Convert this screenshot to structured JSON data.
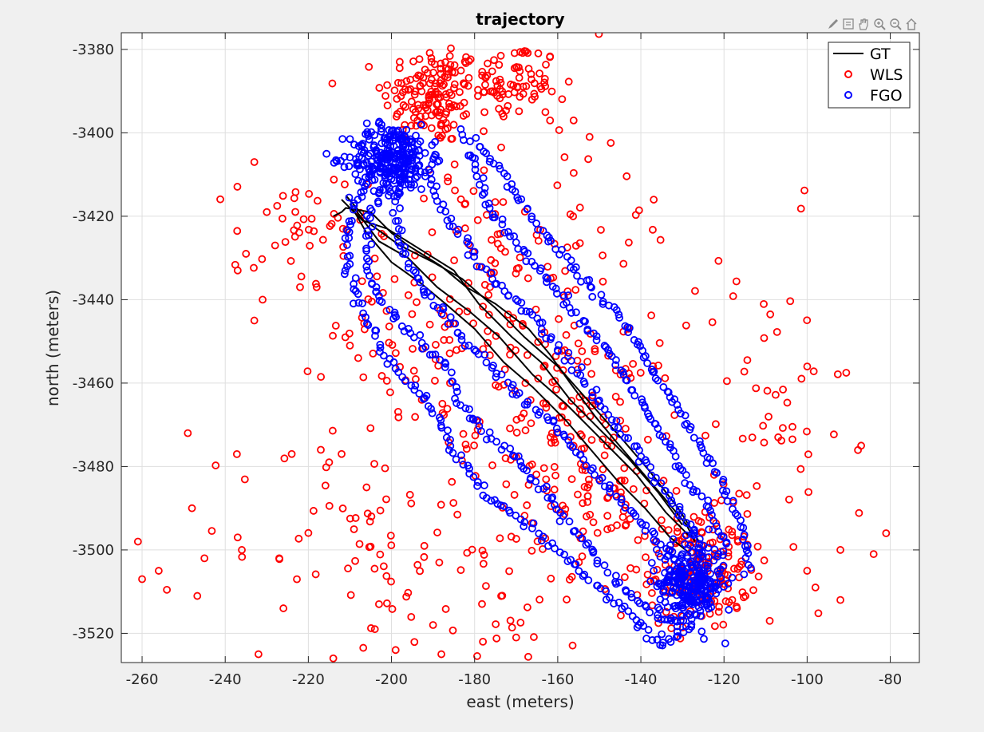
{
  "chart_data": {
    "type": "scatter",
    "title": "trajectory",
    "xlabel": "east (meters)",
    "ylabel": "north (meters)",
    "xlim": [
      -265,
      -73
    ],
    "ylim": [
      -3527,
      -3376
    ],
    "xticks": [
      -260,
      -240,
      -220,
      -200,
      -180,
      -160,
      -140,
      -120,
      -100,
      -80
    ],
    "yticks": [
      -3380,
      -3400,
      -3420,
      -3440,
      -3460,
      -3480,
      -3500,
      -3520
    ],
    "grid": true,
    "legend_position": "top-right",
    "colors": {
      "GT": "#000000",
      "WLS": "#ff0000",
      "FGO": "#0000ff"
    },
    "toolbar_icons": [
      "brush-icon",
      "data-tip-icon",
      "pan-icon",
      "zoom-in-icon",
      "zoom-out-icon",
      "home-icon"
    ],
    "series": [
      {
        "name": "GT",
        "style": "line",
        "paths": [
          [
            [
              -214,
              -3420
            ],
            [
              -212,
              -3419
            ],
            [
              -211,
              -3418
            ],
            [
              -205,
              -3419
            ],
            [
              -200,
              -3424
            ],
            [
              -196,
              -3427
            ],
            [
              -188,
              -3432
            ],
            [
              -182,
              -3437
            ],
            [
              -175,
              -3441
            ],
            [
              -167,
              -3447
            ],
            [
              -162,
              -3453
            ],
            [
              -157,
              -3460
            ],
            [
              -151,
              -3468
            ],
            [
              -146,
              -3474
            ],
            [
              -140,
              -3481
            ],
            [
              -134,
              -3488
            ],
            [
              -129,
              -3494
            ],
            [
              -127,
              -3498
            ]
          ],
          [
            [
              -211,
              -3415
            ],
            [
              -205,
              -3422
            ],
            [
              -198,
              -3427
            ],
            [
              -190,
              -3431
            ],
            [
              -183,
              -3435
            ],
            [
              -175,
              -3442
            ],
            [
              -168,
              -3449
            ],
            [
              -160,
              -3456
            ],
            [
              -152,
              -3465
            ],
            [
              -144,
              -3474
            ],
            [
              -138,
              -3481
            ],
            [
              -131,
              -3490
            ],
            [
              -126,
              -3498
            ]
          ],
          [
            [
              -210,
              -3417
            ],
            [
              -206,
              -3424
            ],
            [
              -200,
              -3431
            ],
            [
              -193,
              -3436
            ],
            [
              -187,
              -3441
            ],
            [
              -180,
              -3447
            ],
            [
              -173,
              -3455
            ],
            [
              -166,
              -3461
            ],
            [
              -158,
              -3469
            ],
            [
              -152,
              -3476
            ],
            [
              -146,
              -3483
            ],
            [
              -139,
              -3490
            ],
            [
              -133,
              -3497
            ],
            [
              -128,
              -3501
            ]
          ],
          [
            [
              -212,
              -3416
            ],
            [
              -207,
              -3421
            ],
            [
              -201,
              -3423
            ],
            [
              -193,
              -3428
            ],
            [
              -185,
              -3433
            ],
            [
              -179,
              -3441
            ],
            [
              -171,
              -3449
            ],
            [
              -164,
              -3455
            ],
            [
              -157,
              -3464
            ],
            [
              -150,
              -3471
            ],
            [
              -143,
              -3478
            ],
            [
              -136,
              -3486
            ],
            [
              -130,
              -3494
            ]
          ],
          [
            [
              -209,
              -3418
            ],
            [
              -203,
              -3426
            ],
            [
              -196,
              -3430
            ],
            [
              -189,
              -3437
            ],
            [
              -181,
              -3443
            ],
            [
              -174,
              -3449
            ],
            [
              -166,
              -3458
            ],
            [
              -158,
              -3465
            ],
            [
              -149,
              -3474
            ],
            [
              -141,
              -3482
            ],
            [
              -134,
              -3491
            ],
            [
              -128,
              -3497
            ]
          ]
        ]
      },
      {
        "name": "WLS",
        "style": "markers",
        "clusters": [
          {
            "center": [
              -190,
              -3391
            ],
            "sd": [
              6,
              6
            ],
            "n": 150
          },
          {
            "center": [
              -170,
              -3388
            ],
            "sd": [
              5,
              5
            ],
            "n": 70
          },
          {
            "center": [
              -126,
              -3505
            ],
            "sd": [
              6,
              7
            ],
            "n": 160
          },
          {
            "center": [
              -148,
              -3490
            ],
            "sd": [
              6,
              5
            ],
            "n": 35
          },
          {
            "center": [
              -155,
              -3470
            ],
            "sd": [
              12,
              12
            ],
            "n": 120
          },
          {
            "center": [
              -185,
              -3445
            ],
            "sd": [
              14,
              14
            ],
            "n": 120
          },
          {
            "center": [
              -222,
              -3425
            ],
            "sd": [
              8,
              8
            ],
            "n": 40
          },
          {
            "center": [
              -165,
              -3420
            ],
            "sd": [
              20,
              20
            ],
            "n": 80
          },
          {
            "center": [
              -110,
              -3475
            ],
            "sd": [
              10,
              25
            ],
            "n": 60
          },
          {
            "center": [
              -205,
              -3495
            ],
            "sd": [
              20,
              15
            ],
            "n": 60
          },
          {
            "center": [
              -170,
              -3500
            ],
            "sd": [
              20,
              15
            ],
            "n": 60
          }
        ],
        "points": [
          [
            -261,
            -3498
          ],
          [
            -260,
            -3507
          ],
          [
            -256,
            -3505
          ],
          [
            -249,
            -3472
          ],
          [
            -248,
            -3490
          ],
          [
            -245,
            -3502
          ],
          [
            -237,
            -3433
          ],
          [
            -237,
            -3497
          ],
          [
            -236,
            -3500
          ],
          [
            -233,
            -3407
          ],
          [
            -233,
            -3445
          ],
          [
            -232,
            -3525
          ],
          [
            -231,
            -3440
          ],
          [
            -230,
            -3419
          ],
          [
            -226,
            -3514
          ],
          [
            -224,
            -3477
          ],
          [
            -222,
            -3437
          ],
          [
            -218,
            -3437
          ],
          [
            -217,
            -3476
          ],
          [
            -215,
            -3479
          ],
          [
            -212,
            -3477
          ],
          [
            -210,
            -3451
          ],
          [
            -208,
            -3454
          ],
          [
            -206,
            -3485
          ],
          [
            -204,
            -3519
          ],
          [
            -203,
            -3513
          ],
          [
            -199,
            -3524
          ],
          [
            -190,
            -3518
          ],
          [
            -188,
            -3525
          ],
          [
            -178,
            -3522
          ],
          [
            -170,
            -3521
          ],
          [
            -84,
            -3501
          ],
          [
            -81,
            -3496
          ],
          [
            -87,
            -3475
          ],
          [
            -92,
            -3500
          ],
          [
            -92,
            -3512
          ],
          [
            -214,
            -3526
          ],
          [
            -227,
            -3502
          ],
          [
            -235,
            -3429
          ],
          [
            -228,
            -3427
          ],
          [
            -98,
            -3509
          ],
          [
            -100,
            -3505
          ],
          [
            -109,
            -3517
          ]
        ]
      },
      {
        "name": "FGO",
        "style": "markers",
        "cluster_top": {
          "center": [
            -200,
            -3406
          ],
          "sd": [
            5,
            4
          ],
          "n": 260
        },
        "cluster_bottom": {
          "center": [
            -128,
            -3508
          ],
          "sd": [
            4,
            5
          ],
          "n": 260
        },
        "paths": [
          [
            [
              -205,
              -3410
            ],
            [
              -210,
              -3420
            ],
            [
              -211,
              -3432
            ],
            [
              -206,
              -3444
            ],
            [
              -202,
              -3452
            ],
            [
              -196,
              -3460
            ],
            [
              -190,
              -3466
            ],
            [
              -186,
              -3475
            ],
            [
              -181,
              -3482
            ],
            [
              -176,
              -3488
            ],
            [
              -170,
              -3492
            ],
            [
              -164,
              -3497
            ],
            [
              -158,
              -3502
            ],
            [
              -152,
              -3507
            ],
            [
              -146,
              -3512
            ],
            [
              -140,
              -3518
            ],
            [
              -135,
              -3523
            ],
            [
              -130,
              -3520
            ]
          ],
          [
            [
              -200,
              -3408
            ],
            [
              -205,
              -3420
            ],
            [
              -206,
              -3433
            ],
            [
              -200,
              -3444
            ],
            [
              -193,
              -3450
            ],
            [
              -187,
              -3456
            ],
            [
              -183,
              -3466
            ],
            [
              -177,
              -3472
            ],
            [
              -170,
              -3478
            ],
            [
              -163,
              -3486
            ],
            [
              -158,
              -3493
            ],
            [
              -153,
              -3499
            ],
            [
              -148,
              -3505
            ],
            [
              -142,
              -3511
            ],
            [
              -136,
              -3516
            ],
            [
              -130,
              -3518
            ]
          ],
          [
            [
              -196,
              -3404
            ],
            [
              -199,
              -3415
            ],
            [
              -198,
              -3427
            ],
            [
              -193,
              -3437
            ],
            [
              -187,
              -3444
            ],
            [
              -181,
              -3451
            ],
            [
              -175,
              -3457
            ],
            [
              -168,
              -3464
            ],
            [
              -161,
              -3470
            ],
            [
              -155,
              -3477
            ],
            [
              -148,
              -3485
            ],
            [
              -141,
              -3492
            ],
            [
              -135,
              -3499
            ],
            [
              -130,
              -3506
            ]
          ],
          [
            [
              -190,
              -3402
            ],
            [
              -190,
              -3412
            ],
            [
              -186,
              -3421
            ],
            [
              -181,
              -3428
            ],
            [
              -176,
              -3435
            ],
            [
              -169,
              -3441
            ],
            [
              -163,
              -3448
            ],
            [
              -157,
              -3455
            ],
            [
              -151,
              -3463
            ],
            [
              -145,
              -3471
            ],
            [
              -139,
              -3479
            ],
            [
              -133,
              -3487
            ],
            [
              -128,
              -3495
            ],
            [
              -124,
              -3503
            ]
          ],
          [
            [
              -183,
              -3400
            ],
            [
              -180,
              -3408
            ],
            [
              -177,
              -3416
            ],
            [
              -172,
              -3424
            ],
            [
              -166,
              -3431
            ],
            [
              -160,
              -3438
            ],
            [
              -154,
              -3445
            ],
            [
              -148,
              -3452
            ],
            [
              -143,
              -3460
            ],
            [
              -138,
              -3468
            ],
            [
              -133,
              -3476
            ],
            [
              -128,
              -3484
            ],
            [
              -123,
              -3492
            ],
            [
              -119,
              -3500
            ]
          ],
          [
            [
              -180,
              -3402
            ],
            [
              -173,
              -3410
            ],
            [
              -168,
              -3418
            ],
            [
              -162,
              -3426
            ],
            [
              -155,
              -3433
            ],
            [
              -149,
              -3440
            ],
            [
              -143,
              -3447
            ],
            [
              -138,
              -3455
            ],
            [
              -133,
              -3463
            ],
            [
              -128,
              -3471
            ],
            [
              -123,
              -3479
            ],
            [
              -119,
              -3487
            ],
            [
              -115,
              -3496
            ],
            [
              -114,
              -3505
            ]
          ]
        ]
      }
    ]
  }
}
